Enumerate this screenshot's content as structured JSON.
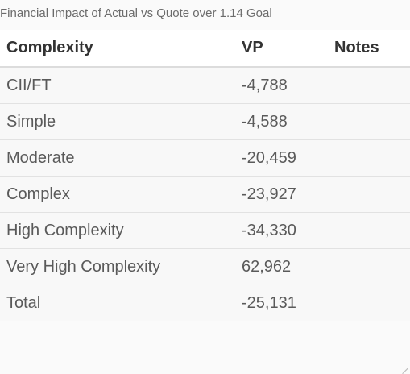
{
  "caption": "Financial Impact of Actual vs Quote over 1.14 Goal",
  "table": {
    "headers": [
      "Complexity",
      "VP",
      "Notes"
    ],
    "rows": [
      {
        "complexity": "CII/FT",
        "vp": "-4,788",
        "notes": ""
      },
      {
        "complexity": "Simple",
        "vp": "-4,588",
        "notes": ""
      },
      {
        "complexity": "Moderate",
        "vp": "-20,459",
        "notes": ""
      },
      {
        "complexity": "Complex",
        "vp": "-23,927",
        "notes": ""
      },
      {
        "complexity": "High Complexity",
        "vp": "-34,330",
        "notes": ""
      },
      {
        "complexity": "Very High Complexity",
        "vp": "62,962",
        "notes": ""
      },
      {
        "complexity": "Total",
        "vp": "-25,131",
        "notes": ""
      }
    ]
  }
}
